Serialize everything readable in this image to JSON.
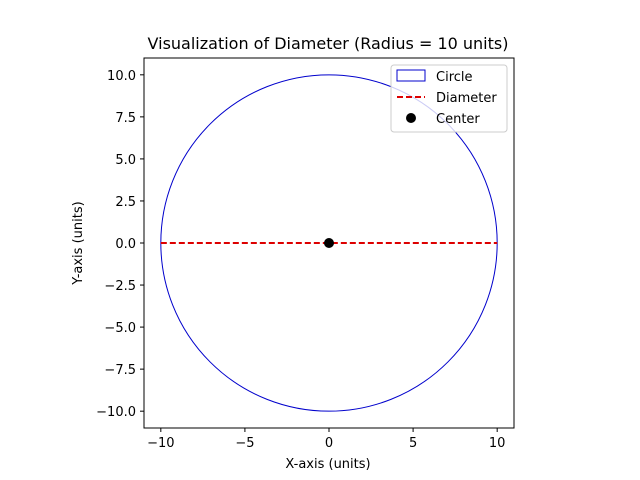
{
  "chart_data": {
    "type": "scatter",
    "title": "Visualization of Diameter (Radius = 10 units)",
    "xlabel": "X-axis (units)",
    "ylabel": "Y-axis (units)",
    "xlim": [
      -11,
      11
    ],
    "ylim": [
      -11,
      11
    ],
    "x_ticks": [
      -10,
      -5,
      0,
      5,
      10
    ],
    "x_tick_labels": [
      "−10",
      "−5",
      "0",
      "5",
      "10"
    ],
    "y_ticks": [
      10,
      7.5,
      5,
      2.5,
      0,
      -2.5,
      -5,
      -7.5,
      -10
    ],
    "y_tick_labels": [
      "10.0",
      "7.5",
      "5.0",
      "2.5",
      "0.0",
      "−2.5",
      "−5.0",
      "−7.5",
      "−10.0"
    ],
    "grid": false,
    "legend_position": "upper right",
    "series": [
      {
        "name": "Circle",
        "kind": "circle",
        "center": [
          0,
          0
        ],
        "radius": 10,
        "color": "#0000cc"
      },
      {
        "name": "Diameter",
        "kind": "dashed-line",
        "x": [
          -10,
          10
        ],
        "y": [
          0,
          0
        ],
        "color": "#dd0000"
      },
      {
        "name": "Center",
        "kind": "point",
        "x": [
          0
        ],
        "y": [
          0
        ],
        "color": "#000000"
      }
    ]
  }
}
